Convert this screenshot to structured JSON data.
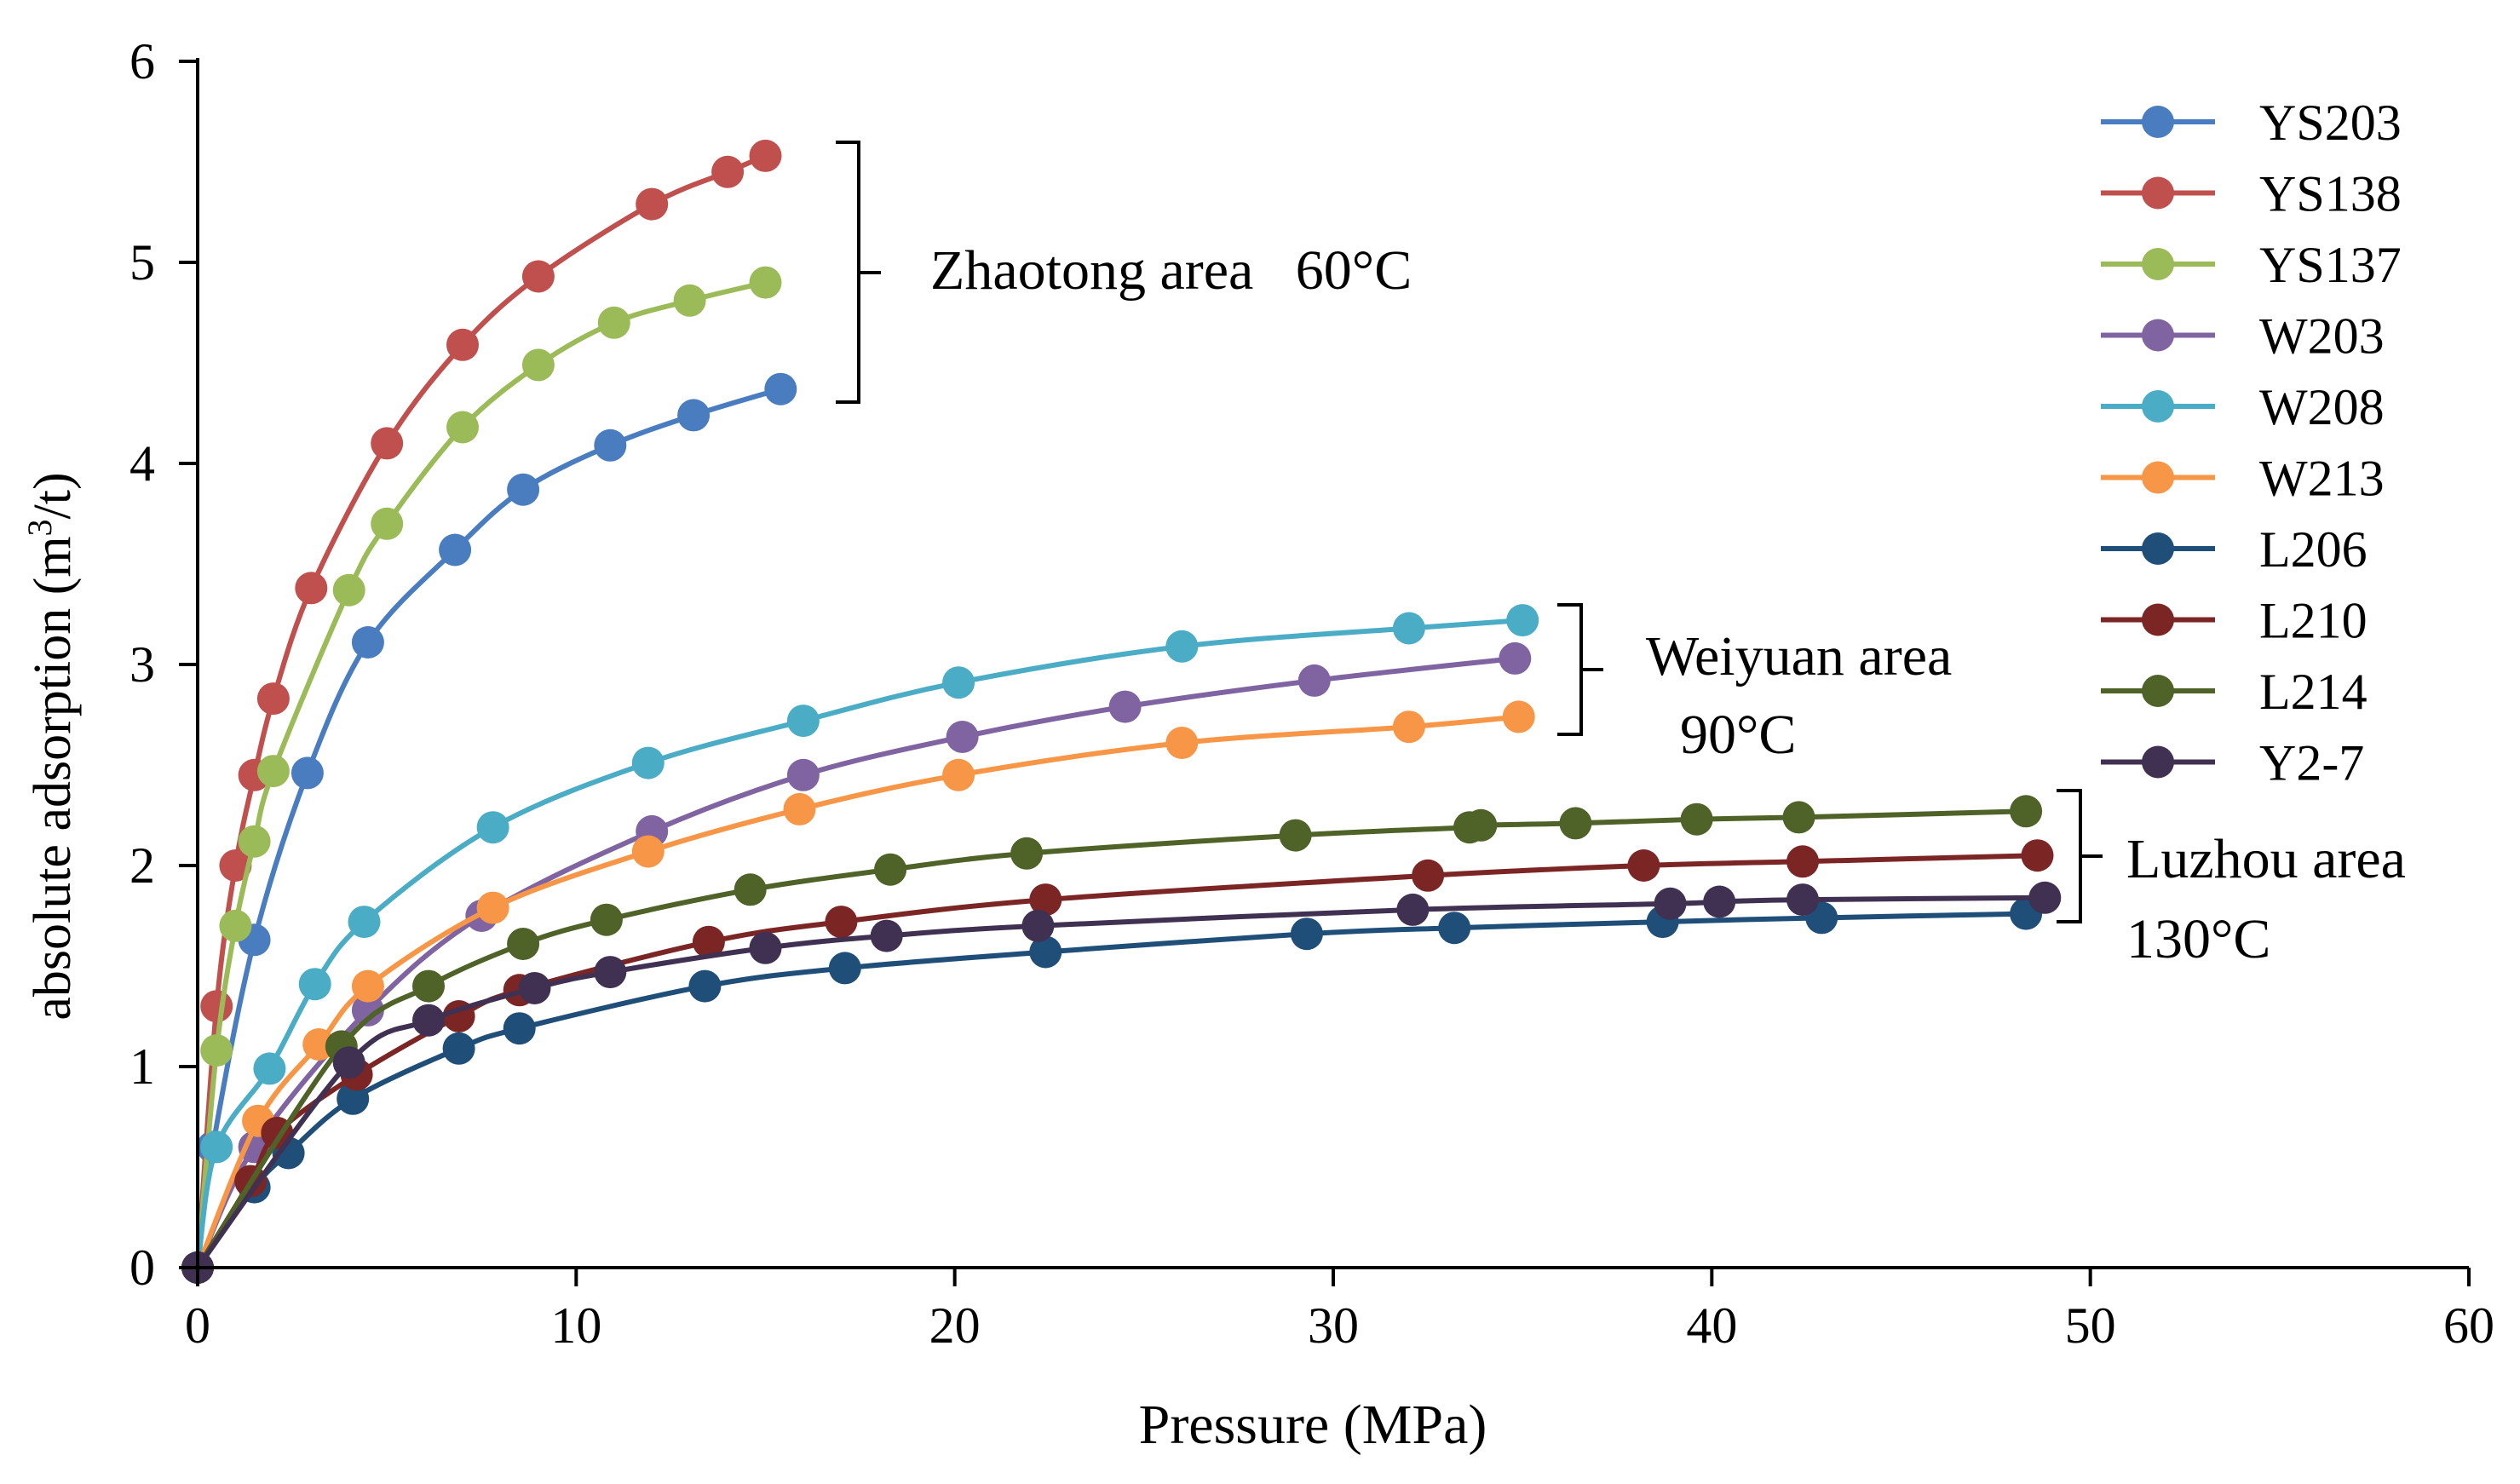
{
  "chart_data": {
    "type": "line",
    "title": "",
    "xlabel": "Pressure (MPa)",
    "ylabel_main": "absolute adsorption (m",
    "ylabel_sup": "3",
    "ylabel_tail": "/t)",
    "xlim": [
      0,
      60
    ],
    "ylim": [
      0,
      6
    ],
    "xticks": [
      0,
      10,
      20,
      30,
      40,
      50,
      60
    ],
    "yticks": [
      0,
      1,
      2,
      3,
      4,
      5,
      6
    ],
    "xtick_labels": [
      "0",
      "10",
      "20",
      "30",
      "40",
      "50",
      "60"
    ],
    "ytick_labels": [
      "0",
      "1",
      "2",
      "3",
      "4",
      "5",
      "6"
    ],
    "grid": false,
    "legend_position": "top-right",
    "series": [
      {
        "name": "YS203",
        "color": "#4a7dc0",
        "x": [
          0,
          0.4,
          1.5,
          2.9,
          4.5,
          6.8,
          8.6,
          10.9,
          13.1,
          15.4
        ],
        "y": [
          0,
          0.6,
          1.63,
          2.46,
          3.11,
          3.57,
          3.87,
          4.09,
          4.24,
          4.37
        ]
      },
      {
        "name": "YS138",
        "color": "#c0504d",
        "x": [
          0,
          0.5,
          1.0,
          1.5,
          2.0,
          3.0,
          5.0,
          7.0,
          9.0,
          12.0,
          14.0,
          15.0
        ],
        "y": [
          0,
          1.3,
          2.0,
          2.45,
          2.83,
          3.38,
          4.1,
          4.59,
          4.93,
          5.29,
          5.45,
          5.53
        ]
      },
      {
        "name": "YS137",
        "color": "#9bbb59",
        "x": [
          0,
          0.5,
          1.0,
          1.5,
          2.0,
          4.0,
          5.0,
          7.0,
          9.0,
          11.0,
          13.0,
          15.0
        ],
        "y": [
          0,
          1.08,
          1.7,
          2.12,
          2.47,
          3.37,
          3.7,
          4.18,
          4.49,
          4.7,
          4.81,
          4.9
        ]
      },
      {
        "name": "W203",
        "color": "#8064a2",
        "x": [
          0,
          1.5,
          4.5,
          7.5,
          12.0,
          16.0,
          20.2,
          24.5,
          29.5,
          34.8
        ],
        "y": [
          0,
          0.6,
          1.28,
          1.75,
          2.17,
          2.45,
          2.64,
          2.79,
          2.92,
          3.03
        ]
      },
      {
        "name": "W208",
        "color": "#4bacc6",
        "x": [
          0,
          0.5,
          1.9,
          3.1,
          4.4,
          7.8,
          11.9,
          16.0,
          20.1,
          26.0,
          32.0,
          35.0
        ],
        "y": [
          0,
          0.6,
          0.99,
          1.41,
          1.72,
          2.19,
          2.51,
          2.72,
          2.91,
          3.09,
          3.18,
          3.22
        ]
      },
      {
        "name": "W213",
        "color": "#f79646",
        "x": [
          0,
          1.6,
          3.2,
          4.5,
          7.8,
          11.9,
          15.9,
          20.1,
          26.0,
          32.0,
          34.9
        ],
        "y": [
          0,
          0.73,
          1.11,
          1.4,
          1.79,
          2.07,
          2.28,
          2.45,
          2.61,
          2.69,
          2.74
        ]
      },
      {
        "name": "L206",
        "color": "#1f4e79",
        "x": [
          0,
          1.5,
          2.4,
          4.1,
          6.9,
          8.5,
          13.4,
          17.1,
          22.4,
          29.3,
          33.2,
          38.7,
          42.9,
          48.3
        ],
        "y": [
          0,
          0.4,
          0.57,
          0.84,
          1.09,
          1.19,
          1.4,
          1.49,
          1.57,
          1.66,
          1.69,
          1.72,
          1.74,
          1.76
        ]
      },
      {
        "name": "L210",
        "color": "#7b2625",
        "x": [
          0,
          1.4,
          2.1,
          4.2,
          6.9,
          8.5,
          13.5,
          17.0,
          22.4,
          32.5,
          38.2,
          42.4,
          48.6
        ],
        "y": [
          0,
          0.43,
          0.67,
          0.96,
          1.25,
          1.38,
          1.62,
          1.72,
          1.83,
          1.95,
          2.0,
          2.02,
          2.05
        ]
      },
      {
        "name": "L214",
        "color": "#4f6228",
        "x": [
          0,
          3.8,
          6.1,
          8.6,
          10.8,
          14.6,
          18.3,
          21.9,
          29.0,
          33.6,
          33.9,
          36.4,
          39.6,
          42.3,
          48.3
        ],
        "y": [
          0,
          1.1,
          1.4,
          1.61,
          1.73,
          1.88,
          1.98,
          2.06,
          2.15,
          2.19,
          2.2,
          2.21,
          2.23,
          2.24,
          2.27
        ]
      },
      {
        "name": "Y2-7",
        "color": "#403152",
        "x": [
          0,
          4.0,
          6.1,
          8.9,
          10.9,
          15.0,
          18.2,
          22.2,
          32.1,
          38.9,
          40.2,
          42.4,
          48.8
        ],
        "y": [
          0,
          1.02,
          1.23,
          1.39,
          1.47,
          1.59,
          1.65,
          1.7,
          1.78,
          1.81,
          1.82,
          1.83,
          1.84
        ]
      }
    ],
    "annotations": [
      {
        "id": "zhaotong",
        "line1": "Zhaotong area   60°C",
        "line2": ""
      },
      {
        "id": "weiyuan",
        "line1": "Weiyuan area",
        "line2": "90°C"
      },
      {
        "id": "luzhou",
        "line1": "Luzhou area",
        "line2": "130°C"
      }
    ]
  }
}
